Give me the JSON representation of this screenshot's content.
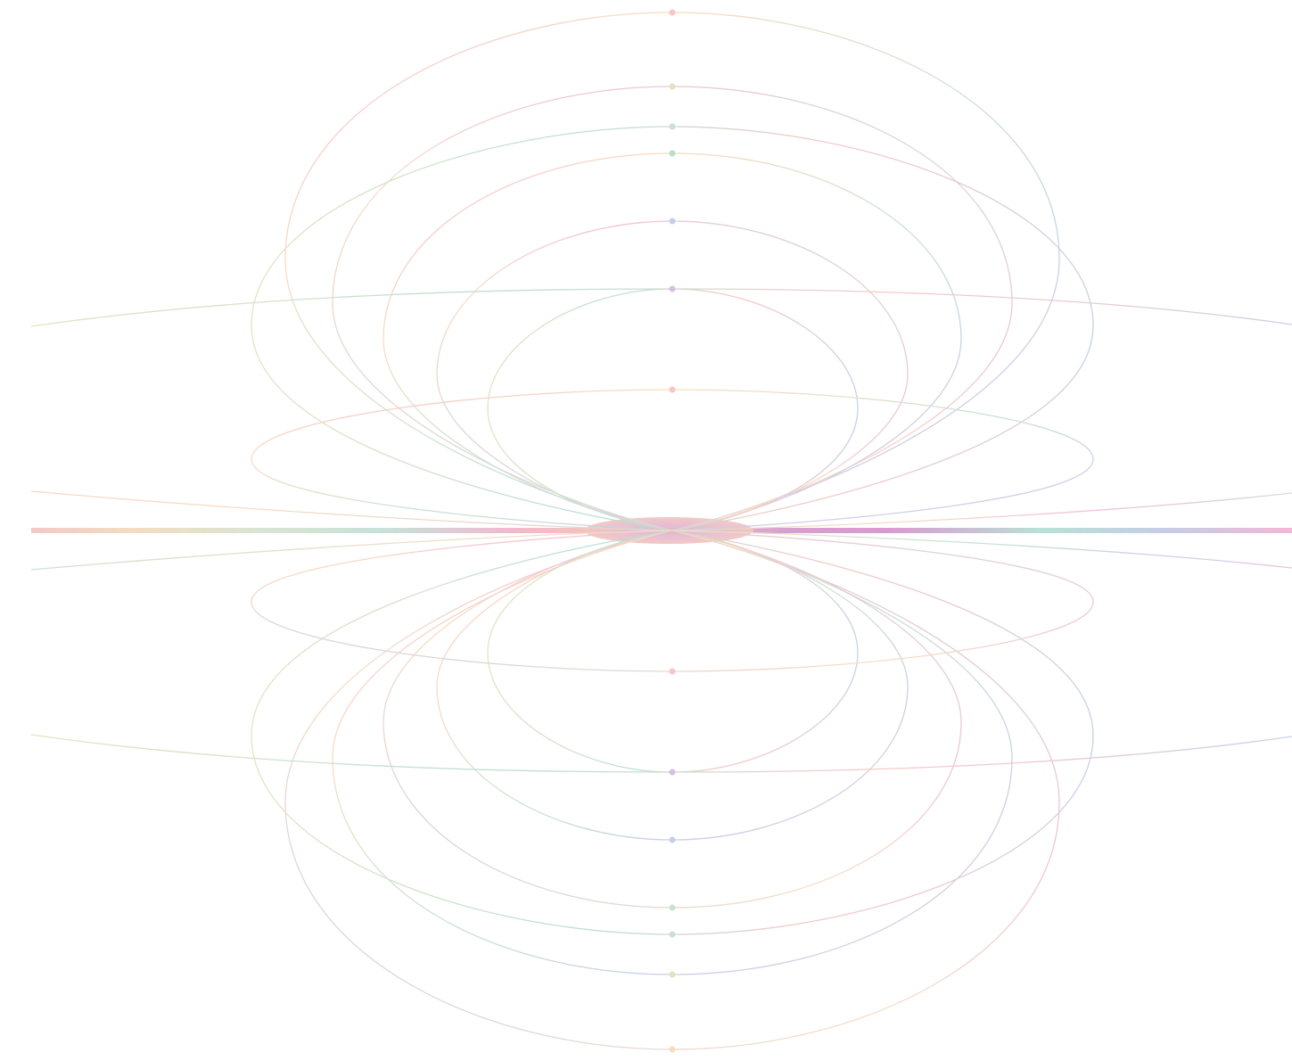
{
  "artwork": {
    "description_free": true,
    "palette": [
      "#f7c6c6",
      "#f7dcc0",
      "#e3e2c0",
      "#c9e1cf",
      "#b9dfd3",
      "#c7cfe6",
      "#d7bfe3",
      "#efc0d9",
      "#d99ad1"
    ],
    "loops": [
      {
        "id": "loop-1",
        "dot_color": "#f7c6c6"
      },
      {
        "id": "loop-2",
        "dot_color": "#e3e2c0"
      },
      {
        "id": "loop-3",
        "dot_color": "#c9e1cf"
      },
      {
        "id": "loop-4",
        "dot_color": "#b9dfc6"
      },
      {
        "id": "loop-5",
        "dot_color": "#c7cfe6"
      },
      {
        "id": "loop-6",
        "dot_color": "#d7bfe3"
      },
      {
        "id": "loop-7",
        "dot_color": "#f7c6c6"
      },
      {
        "id": "loop-8",
        "dot_color": "#f7c6c6"
      }
    ],
    "center_band_colors": [
      "#f2c9c6",
      "#f3dcc0",
      "#d9e5d2",
      "#c6e2d8",
      "#f2b8cf",
      "#f6c4b6",
      "#e6b6cf",
      "#d79fd0",
      "#c6a8db",
      "#b9e0d6",
      "#c4cee6",
      "#f2b8d6"
    ]
  }
}
